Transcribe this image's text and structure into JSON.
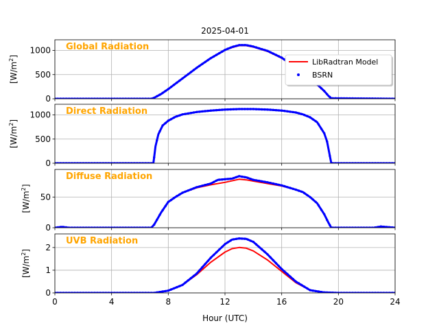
{
  "figure": {
    "title": "2025-04-01",
    "xlabel": "Hour (UTC)",
    "unit_prefix": "[W/m",
    "unit_exp": "2",
    "unit_suffix": "]",
    "x_ticks": [
      "0",
      "4",
      "8",
      "12",
      "16",
      "20",
      "24"
    ],
    "colors": {
      "model": "#ff0000",
      "bsrn": "#0000ff",
      "label": "#ffa500",
      "grid": "#b0b0b0"
    }
  },
  "legend": {
    "placement": "upper-right of top panel",
    "items": [
      {
        "label": "LibRadtran Model",
        "style": "line",
        "color": "#ff0000"
      },
      {
        "label": "BSRN",
        "style": "dot",
        "color": "#0000ff"
      }
    ]
  },
  "chart_data": [
    {
      "type": "line",
      "title": "Global Radiation",
      "xlim": [
        0,
        24
      ],
      "ylim": [
        0,
        1220
      ],
      "y_ticks": [
        0,
        500,
        1000
      ],
      "grid": true,
      "series": [
        {
          "name": "LibRadtran Model",
          "style": "line",
          "x": [
            0,
            6.8,
            7.0,
            7.5,
            8,
            9,
            10,
            11,
            12,
            12.5,
            13,
            13.5,
            14,
            15,
            16,
            17,
            18,
            18.5,
            19,
            19.3,
            19.5,
            24
          ],
          "y": [
            0,
            0,
            20,
            100,
            200,
            420,
            640,
            840,
            1010,
            1060,
            1100,
            1100,
            1070,
            980,
            840,
            640,
            410,
            290,
            150,
            60,
            10,
            0
          ]
        },
        {
          "name": "BSRN",
          "style": "dots",
          "x": [
            0,
            6.8,
            7.0,
            7.5,
            8,
            9,
            10,
            11,
            12,
            12.5,
            13,
            13.5,
            14,
            15,
            16,
            17,
            18,
            18.5,
            19,
            19.3,
            19.5,
            24
          ],
          "y": [
            0,
            0,
            20,
            100,
            200,
            420,
            640,
            840,
            1010,
            1070,
            1110,
            1110,
            1080,
            990,
            850,
            650,
            420,
            300,
            160,
            60,
            10,
            0
          ]
        }
      ]
    },
    {
      "type": "line",
      "title": "Direct Radiation",
      "xlim": [
        0,
        24
      ],
      "ylim": [
        0,
        1220
      ],
      "y_ticks": [
        0,
        500,
        1000
      ],
      "grid": true,
      "series": [
        {
          "name": "LibRadtran Model",
          "style": "line",
          "x": [
            0,
            6.95,
            7.0,
            7.1,
            7.3,
            7.6,
            8,
            8.5,
            9,
            10,
            11,
            12,
            13,
            14,
            15,
            16,
            17,
            17.5,
            18,
            18.5,
            19,
            19.2,
            19.4,
            19.5,
            24
          ],
          "y": [
            0,
            0,
            120,
            350,
            600,
            780,
            880,
            960,
            1010,
            1060,
            1090,
            1110,
            1120,
            1120,
            1110,
            1090,
            1050,
            1010,
            950,
            850,
            620,
            450,
            150,
            0,
            0
          ]
        },
        {
          "name": "BSRN",
          "style": "dots",
          "x": [
            0,
            6.95,
            7.0,
            7.1,
            7.3,
            7.6,
            8,
            8.5,
            9,
            10,
            11,
            12,
            13,
            14,
            15,
            16,
            17,
            17.5,
            18,
            18.5,
            19,
            19.2,
            19.4,
            19.5,
            24
          ],
          "y": [
            0,
            0,
            120,
            350,
            600,
            780,
            880,
            960,
            1010,
            1060,
            1090,
            1110,
            1120,
            1120,
            1110,
            1090,
            1050,
            1010,
            950,
            850,
            620,
            450,
            150,
            0,
            0
          ]
        }
      ]
    },
    {
      "type": "line",
      "title": "Diffuse Radiation",
      "xlim": [
        0,
        24
      ],
      "ylim": [
        0,
        95
      ],
      "y_ticks": [
        0,
        50
      ],
      "grid": true,
      "series": [
        {
          "name": "LibRadtran Model",
          "style": "line",
          "x": [
            0,
            6.8,
            7.0,
            7.5,
            8,
            8.5,
            9,
            10,
            11,
            12,
            13,
            13.5,
            14,
            15,
            16,
            17,
            17.5,
            18,
            18.5,
            19,
            19.3,
            19.5,
            24
          ],
          "y": [
            0,
            0,
            5,
            25,
            42,
            50,
            57,
            65,
            70,
            74,
            79,
            78,
            76,
            72,
            68,
            62,
            58,
            50,
            40,
            22,
            8,
            0,
            0
          ]
        },
        {
          "name": "BSRN",
          "style": "dots",
          "x": [
            0,
            0.5,
            1.0,
            6.8,
            7.0,
            7.5,
            8,
            8.5,
            9,
            10,
            11,
            11.5,
            12,
            12.5,
            13,
            13.5,
            14,
            15,
            16,
            17,
            17.5,
            18,
            18.5,
            19,
            19.3,
            19.5,
            22.5,
            23,
            23.5,
            24
          ],
          "y": [
            0,
            1.5,
            0,
            0,
            5,
            25,
            42,
            50,
            57,
            66,
            72,
            78,
            79,
            80,
            84,
            82,
            78,
            74,
            69,
            62,
            58,
            50,
            40,
            22,
            8,
            0,
            0,
            2,
            1,
            0
          ]
        }
      ]
    },
    {
      "type": "line",
      "title": "UVB Radiation",
      "xlim": [
        0,
        24
      ],
      "ylim": [
        0,
        2.6
      ],
      "y_ticks": [
        0,
        1,
        2
      ],
      "grid": true,
      "series": [
        {
          "name": "LibRadtran Model",
          "style": "line",
          "x": [
            0,
            7,
            8,
            9,
            10,
            11,
            12,
            12.5,
            13,
            13.5,
            14,
            15,
            16,
            17,
            18,
            19,
            20,
            24
          ],
          "y": [
            0,
            0,
            0.1,
            0.35,
            0.8,
            1.35,
            1.8,
            1.95,
            2.0,
            1.97,
            1.85,
            1.45,
            0.95,
            0.45,
            0.12,
            0.02,
            0,
            0
          ]
        },
        {
          "name": "BSRN",
          "style": "dots",
          "x": [
            0,
            7,
            8,
            9,
            10,
            11,
            12,
            12.5,
            13,
            13.5,
            14,
            15,
            16,
            17,
            18,
            19,
            20,
            24
          ],
          "y": [
            0,
            0,
            0.1,
            0.35,
            0.85,
            1.55,
            2.15,
            2.35,
            2.4,
            2.38,
            2.25,
            1.7,
            1.05,
            0.5,
            0.12,
            0.02,
            0,
            0
          ]
        }
      ]
    }
  ]
}
